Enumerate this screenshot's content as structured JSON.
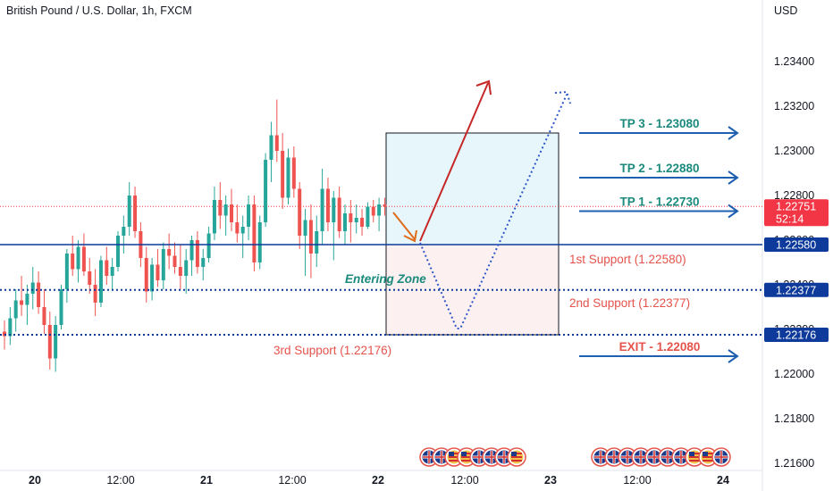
{
  "header": {
    "title": "British Pound / U.S. Dollar, 1h, FXCM",
    "currency": "USD"
  },
  "chart_data": {
    "type": "candlestick",
    "symbol": "GBPUSD",
    "timeframe": "1h",
    "ylim": [
      1.2158,
      1.2352
    ],
    "y_ticks": [
      "1.21600",
      "1.21800",
      "1.22000",
      "1.22200",
      "1.22400",
      "1.22600",
      "1.22800",
      "1.23000",
      "1.23200",
      "1.23400"
    ],
    "x_ticks": [
      "20",
      "12:00",
      "21",
      "12:00",
      "22",
      "12:00",
      "23",
      "12:00",
      "24"
    ],
    "current_price": {
      "value": "1.22751",
      "countdown": "52:14",
      "color": "#f23645"
    },
    "colors": {
      "up": "#26a69a",
      "down": "#ef5350",
      "support": "#0d3a9b",
      "target": "#1e5fb0",
      "text_green": "#1b8a7d",
      "text_red": "#e5534b"
    },
    "candles": [
      [
        1.2219,
        1.2224,
        1.2211,
        1.2217
      ],
      [
        1.2217,
        1.223,
        1.2213,
        1.2225
      ],
      [
        1.2225,
        1.2238,
        1.2219,
        1.2233
      ],
      [
        1.2233,
        1.2244,
        1.2226,
        1.2231
      ],
      [
        1.2231,
        1.224,
        1.2222,
        1.2236
      ],
      [
        1.2236,
        1.2248,
        1.2229,
        1.2241
      ],
      [
        1.2241,
        1.2246,
        1.2227,
        1.223
      ],
      [
        1.223,
        1.2238,
        1.2218,
        1.2222
      ],
      [
        1.2222,
        1.2228,
        1.2202,
        1.2207
      ],
      [
        1.2207,
        1.2226,
        1.2201,
        1.2222
      ],
      [
        1.2222,
        1.224,
        1.222,
        1.2238
      ],
      [
        1.2238,
        1.2256,
        1.2232,
        1.2254
      ],
      [
        1.2254,
        1.2262,
        1.2244,
        1.2247
      ],
      [
        1.2247,
        1.226,
        1.2241,
        1.2257
      ],
      [
        1.2257,
        1.2263,
        1.2244,
        1.2246
      ],
      [
        1.2246,
        1.2252,
        1.2236,
        1.224
      ],
      [
        1.224,
        1.2247,
        1.2226,
        1.2232
      ],
      [
        1.2232,
        1.2253,
        1.223,
        1.2251
      ],
      [
        1.2251,
        1.2257,
        1.224,
        1.2244
      ],
      [
        1.2244,
        1.2252,
        1.2238,
        1.2248
      ],
      [
        1.2248,
        1.2264,
        1.2246,
        1.2262
      ],
      [
        1.2262,
        1.2271,
        1.2254,
        1.2266
      ],
      [
        1.2266,
        1.2286,
        1.2262,
        1.228
      ],
      [
        1.228,
        1.2284,
        1.2261,
        1.2264
      ],
      [
        1.2264,
        1.2268,
        1.2248,
        1.2252
      ],
      [
        1.2252,
        1.2257,
        1.2232,
        1.2237
      ],
      [
        1.2237,
        1.2252,
        1.2233,
        1.2249
      ],
      [
        1.2249,
        1.2256,
        1.2239,
        1.2242
      ],
      [
        1.2242,
        1.2259,
        1.2238,
        1.2256
      ],
      [
        1.2256,
        1.2263,
        1.2247,
        1.2253
      ],
      [
        1.2253,
        1.2259,
        1.2245,
        1.2248
      ],
      [
        1.2248,
        1.2258,
        1.2238,
        1.2244
      ],
      [
        1.2244,
        1.2256,
        1.2236,
        1.2251
      ],
      [
        1.2251,
        1.2262,
        1.2244,
        1.226
      ],
      [
        1.226,
        1.2264,
        1.2245,
        1.2248
      ],
      [
        1.2248,
        1.2256,
        1.2242,
        1.2252
      ],
      [
        1.2252,
        1.2266,
        1.225,
        1.2263
      ],
      [
        1.2263,
        1.2284,
        1.226,
        1.2278
      ],
      [
        1.2278,
        1.2286,
        1.2265,
        1.2271
      ],
      [
        1.2271,
        1.228,
        1.2262,
        1.2276
      ],
      [
        1.2276,
        1.2283,
        1.2264,
        1.2268
      ],
      [
        1.2268,
        1.2276,
        1.2259,
        1.2263
      ],
      [
        1.2263,
        1.2271,
        1.2252,
        1.2266
      ],
      [
        1.2266,
        1.228,
        1.226,
        1.2276
      ],
      [
        1.2276,
        1.228,
        1.2246,
        1.225
      ],
      [
        1.225,
        1.2271,
        1.2247,
        1.2268
      ],
      [
        1.2268,
        1.2299,
        1.2266,
        1.2296
      ],
      [
        1.2296,
        1.2313,
        1.2286,
        1.2307
      ],
      [
        1.2307,
        1.2323,
        1.2295,
        1.23
      ],
      [
        1.23,
        1.2308,
        1.2274,
        1.2279
      ],
      [
        1.2279,
        1.2301,
        1.2276,
        1.2297
      ],
      [
        1.2297,
        1.2302,
        1.2279,
        1.2283
      ],
      [
        1.2283,
        1.2286,
        1.2256,
        1.2262
      ],
      [
        1.2262,
        1.2274,
        1.2244,
        1.2269
      ],
      [
        1.2269,
        1.2276,
        1.2243,
        1.2254
      ],
      [
        1.2254,
        1.2271,
        1.2248,
        1.2264
      ],
      [
        1.2264,
        1.2292,
        1.2258,
        1.2283
      ],
      [
        1.2283,
        1.2288,
        1.2264,
        1.2268
      ],
      [
        1.2268,
        1.2282,
        1.2251,
        1.2279
      ],
      [
        1.2279,
        1.2284,
        1.2261,
        1.2264
      ],
      [
        1.2264,
        1.2276,
        1.2258,
        1.2272
      ],
      [
        1.2272,
        1.2278,
        1.2259,
        1.2268
      ],
      [
        1.2268,
        1.2276,
        1.2263,
        1.227
      ],
      [
        1.227,
        1.2274,
        1.2262,
        1.2266
      ],
      [
        1.2266,
        1.2277,
        1.2265,
        1.2275
      ],
      [
        1.2275,
        1.2278,
        1.2268,
        1.2271
      ],
      [
        1.2271,
        1.2279,
        1.2264,
        1.2276
      ],
      [
        1.2276,
        1.2279,
        1.2271,
        1.2275
      ]
    ],
    "levels": [
      {
        "name": "1st Support",
        "value": 1.2258,
        "style": "solid",
        "tag": "1.22580",
        "label": "1st Support (1.22580)"
      },
      {
        "name": "2nd Support",
        "value": 1.22377,
        "style": "dotted",
        "tag": "1.22377",
        "label": "2nd Support (1.22377)"
      },
      {
        "name": "3rd Support",
        "value": 1.22176,
        "style": "dotted",
        "tag": "1.22176",
        "label": "3rd Support (1.22176)"
      }
    ],
    "zone_top": 1.2308,
    "zone_bottom": 1.22176,
    "zone_label": "Entering Zone",
    "targets": [
      {
        "label": "TP 3 - 1.23080",
        "value": 1.2308,
        "color": "#1b8a7d"
      },
      {
        "label": "TP 2 - 1.22880",
        "value": 1.2288,
        "color": "#1b8a7d"
      },
      {
        "label": "TP 1 - 1.22730",
        "value": 1.2273,
        "color": "#1b8a7d"
      },
      {
        "label": "EXIT - 1.22080",
        "value": 1.2208,
        "color": "#e5534b"
      }
    ],
    "event_flags": {
      "group_1": [
        "uk",
        "uk",
        "us",
        "us",
        "uk",
        "uk",
        "uk",
        "us"
      ],
      "group_2": [
        "uk",
        "uk",
        "uk",
        "uk",
        "uk",
        "uk",
        "uk",
        "us",
        "us",
        "uk"
      ]
    }
  }
}
